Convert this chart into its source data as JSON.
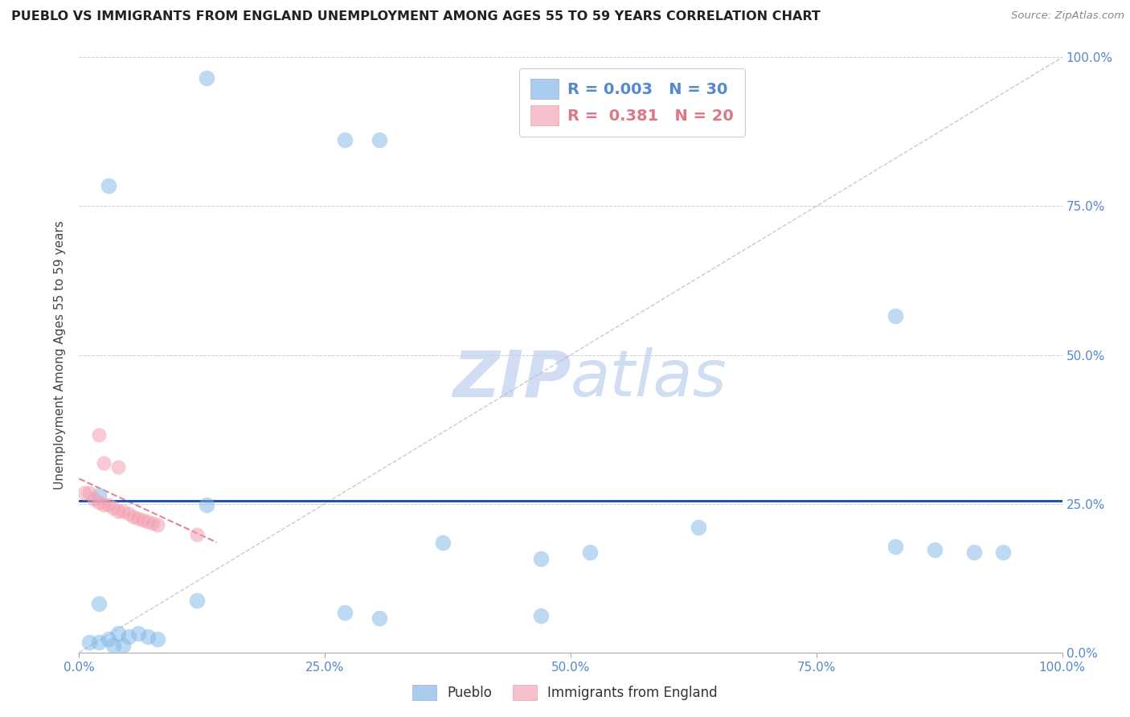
{
  "title": "PUEBLO VS IMMIGRANTS FROM ENGLAND UNEMPLOYMENT AMONG AGES 55 TO 59 YEARS CORRELATION CHART",
  "source_text": "Source: ZipAtlas.com",
  "ylabel": "Unemployment Among Ages 55 to 59 years",
  "xlim": [
    0,
    1.0
  ],
  "ylim": [
    0,
    1.0
  ],
  "pueblo_R": "0.003",
  "pueblo_N": "30",
  "england_R": "0.381",
  "england_N": "20",
  "blue_color": "#7EB6E8",
  "pink_color": "#F4A0B0",
  "legend_blue_color": "#AACCEE",
  "legend_pink_color": "#F8C0CC",
  "title_color": "#222222",
  "axis_color": "#5588CC",
  "watermark_color": "#D8DCF0",
  "hline_y": 0.255,
  "hline_color": "#2255AA",
  "diagonal_color": "#BBBBCC",
  "pink_trend_color": "#DD7788",
  "pueblo_points": [
    [
      0.13,
      0.965
    ],
    [
      0.27,
      0.862
    ],
    [
      0.305,
      0.862
    ],
    [
      0.03,
      0.785
    ],
    [
      0.83,
      0.565
    ],
    [
      0.02,
      0.265
    ],
    [
      0.13,
      0.248
    ],
    [
      0.37,
      0.185
    ],
    [
      0.47,
      0.158
    ],
    [
      0.52,
      0.168
    ],
    [
      0.63,
      0.21
    ],
    [
      0.83,
      0.178
    ],
    [
      0.87,
      0.173
    ],
    [
      0.91,
      0.168
    ],
    [
      0.94,
      0.168
    ],
    [
      0.02,
      0.082
    ],
    [
      0.12,
      0.088
    ],
    [
      0.27,
      0.067
    ],
    [
      0.305,
      0.058
    ],
    [
      0.47,
      0.062
    ],
    [
      0.04,
      0.032
    ],
    [
      0.05,
      0.027
    ],
    [
      0.06,
      0.032
    ],
    [
      0.07,
      0.027
    ],
    [
      0.08,
      0.022
    ],
    [
      0.01,
      0.017
    ],
    [
      0.02,
      0.017
    ],
    [
      0.03,
      0.022
    ],
    [
      0.035,
      0.012
    ],
    [
      0.045,
      0.012
    ]
  ],
  "england_points": [
    [
      0.02,
      0.365
    ],
    [
      0.025,
      0.318
    ],
    [
      0.04,
      0.312
    ],
    [
      0.005,
      0.268
    ],
    [
      0.01,
      0.268
    ],
    [
      0.015,
      0.258
    ],
    [
      0.02,
      0.252
    ],
    [
      0.025,
      0.248
    ],
    [
      0.03,
      0.248
    ],
    [
      0.035,
      0.243
    ],
    [
      0.04,
      0.238
    ],
    [
      0.045,
      0.238
    ],
    [
      0.05,
      0.233
    ],
    [
      0.055,
      0.228
    ],
    [
      0.06,
      0.225
    ],
    [
      0.065,
      0.223
    ],
    [
      0.07,
      0.22
    ],
    [
      0.075,
      0.217
    ],
    [
      0.08,
      0.215
    ],
    [
      0.12,
      0.198
    ]
  ],
  "england_trend_x": [
    0.0,
    0.14
  ],
  "england_trend_y": [
    0.292,
    0.185
  ]
}
